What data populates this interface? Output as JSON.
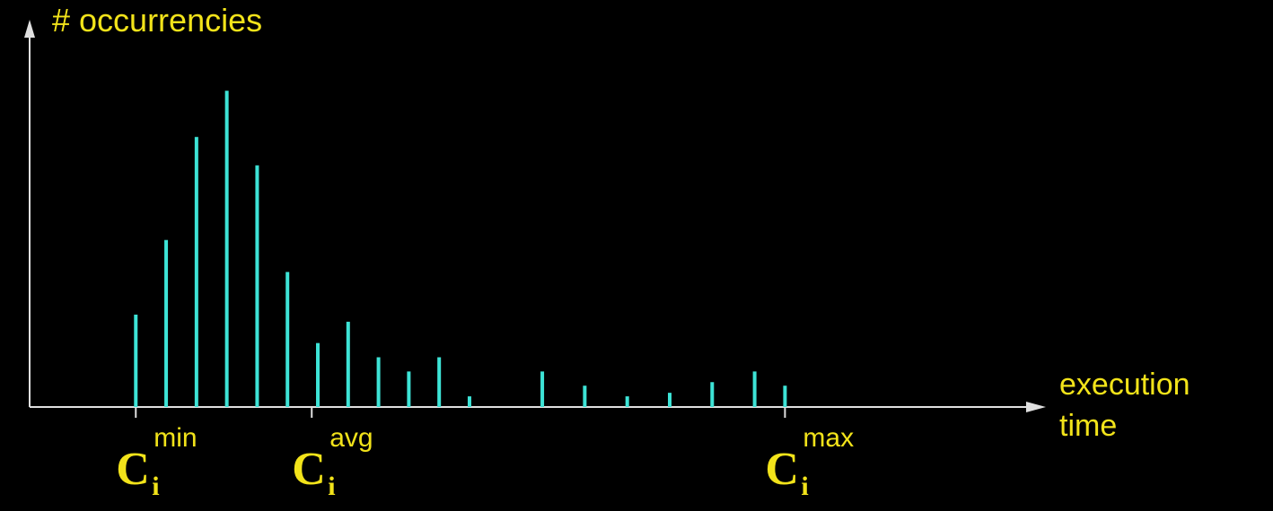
{
  "chart_data": {
    "type": "bar",
    "title": "",
    "ylabel": "# occurrencies",
    "xlabel_lines": [
      "execution",
      "time"
    ],
    "bar_color": "#3de3d6",
    "axis_color": "#e0e0e0",
    "label_color": "#f2e31a",
    "x": [
      1,
      2,
      3,
      4,
      5,
      6,
      7,
      8,
      9,
      10,
      11,
      12,
      14.4,
      15.8,
      17.2,
      18.6,
      20,
      21.4,
      22.4
    ],
    "values": [
      26,
      47,
      76,
      89,
      68,
      38,
      18,
      24,
      14,
      10,
      14,
      3,
      10,
      6,
      3,
      4,
      7,
      10,
      6
    ],
    "xlim": [
      -2.5,
      31
    ],
    "ylim": [
      0,
      110
    ],
    "markers": [
      {
        "x": 1,
        "symbol": "C",
        "subscript": "i",
        "superscript": "min"
      },
      {
        "x": 6.8,
        "symbol": "C",
        "subscript": "i",
        "superscript": "avg"
      },
      {
        "x": 22.4,
        "symbol": "C",
        "subscript": "i",
        "superscript": "max"
      }
    ]
  }
}
